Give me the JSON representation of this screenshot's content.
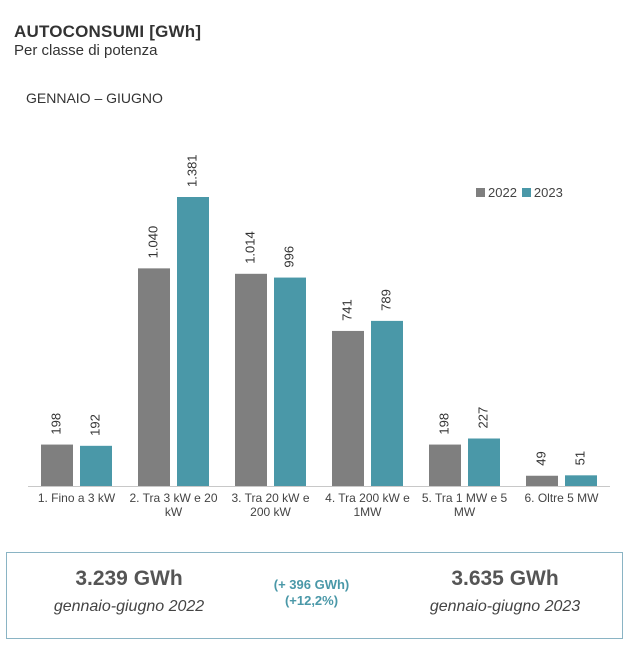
{
  "header": {
    "title": "AUTOCONSUMI [GWh]",
    "subtitle": "Per classe di potenza",
    "period": "GENNAIO – GIUGNO"
  },
  "colors": {
    "s2022": "#7f7f7f",
    "s2023": "#4a98a8",
    "axis": "#c8c8c8"
  },
  "chart_data": {
    "type": "bar",
    "categories": [
      [
        "1. Fino a 3 kW"
      ],
      [
        "2. Tra 3 kW e 20",
        "kW"
      ],
      [
        "3. Tra 20 kW e",
        "200 kW"
      ],
      [
        "4. Tra 200 kW e",
        "1MW"
      ],
      [
        "5. Tra 1 MW e 5",
        "MW"
      ],
      [
        "6. Oltre 5 MW"
      ]
    ],
    "series": [
      {
        "name": "2022",
        "values": [
          198,
          1040,
          1014,
          741,
          198,
          49
        ],
        "labels": [
          "198",
          "1.040",
          "1.014",
          "741",
          "198",
          "49"
        ]
      },
      {
        "name": "2023",
        "values": [
          192,
          1381,
          996,
          789,
          227,
          51
        ],
        "labels": [
          "192",
          "1.381",
          "996",
          "789",
          "227",
          "51"
        ]
      }
    ],
    "ylim": [
      0,
      1381
    ],
    "legend_position": "top-right",
    "grid": false
  },
  "summary": {
    "left": {
      "value": "3.239 GWh",
      "label": "gennaio-giugno 2022"
    },
    "delta": {
      "line1": "(+ 396 GWh)",
      "line2": "(+12,2%)"
    },
    "right": {
      "value": "3.635 GWh",
      "label": "gennaio-giugno 2023"
    }
  }
}
